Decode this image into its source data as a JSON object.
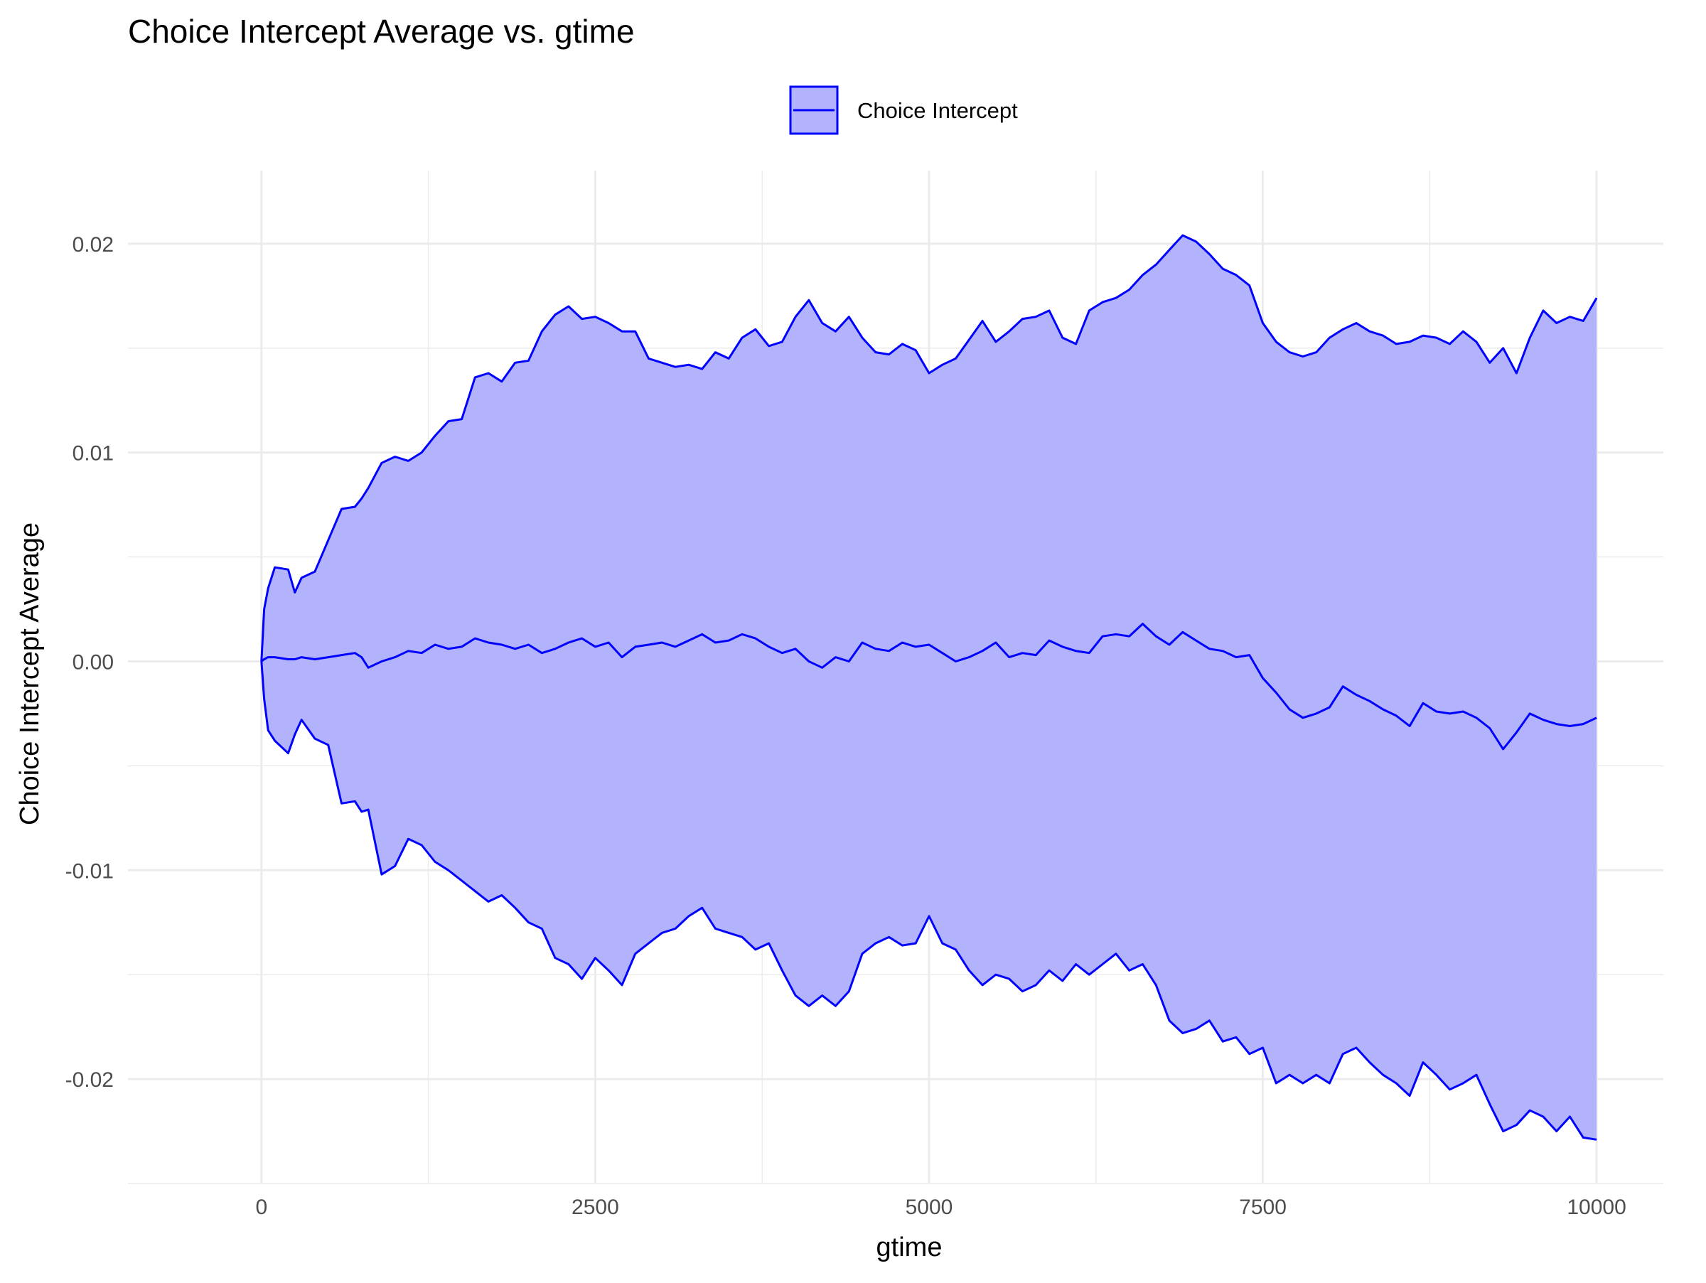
{
  "chart_data": {
    "type": "area",
    "title": "Choice Intercept Average vs. gtime",
    "xlabel": "gtime",
    "ylabel": "Choice Intercept Average",
    "xlim": [
      -1000,
      10500
    ],
    "ylim": [
      -0.025,
      0.0235
    ],
    "x_ticks": [
      0,
      2500,
      5000,
      7500,
      10000
    ],
    "x_tick_labels": [
      "0",
      "2500",
      "5000",
      "7500",
      "10000"
    ],
    "y_ticks": [
      -0.02,
      -0.01,
      0.0,
      0.01,
      0.02
    ],
    "y_tick_labels": [
      "-0.02",
      "-0.01",
      "0.00",
      "0.01",
      "0.02"
    ],
    "grid": true,
    "legend_position": "top",
    "legend": [
      {
        "label": "Choice Intercept",
        "line_color": "#0000FF",
        "fill_color": "#B2B2FD"
      }
    ],
    "colors": {
      "line": "#0000FF",
      "fill": "#B2B2FD",
      "grid": "#EBEBEB",
      "text": "#000000",
      "tick_text": "#4D4D4D"
    },
    "series": [
      {
        "name": "Choice Intercept",
        "x": [
          0,
          20,
          50,
          100,
          200,
          250,
          300,
          400,
          500,
          600,
          700,
          750,
          800,
          900,
          1000,
          1100,
          1200,
          1300,
          1400,
          1500,
          1600,
          1700,
          1800,
          1900,
          2000,
          2100,
          2200,
          2300,
          2400,
          2500,
          2600,
          2700,
          2800,
          2900,
          3000,
          3100,
          3200,
          3300,
          3400,
          3500,
          3600,
          3700,
          3800,
          3900,
          4000,
          4100,
          4200,
          4300,
          4400,
          4500,
          4600,
          4700,
          4800,
          4900,
          5000,
          5100,
          5200,
          5300,
          5400,
          5500,
          5600,
          5700,
          5800,
          5900,
          6000,
          6100,
          6200,
          6300,
          6400,
          6500,
          6600,
          6700,
          6800,
          6900,
          7000,
          7100,
          7200,
          7300,
          7400,
          7500,
          7600,
          7700,
          7800,
          7900,
          8000,
          8100,
          8200,
          8300,
          8400,
          8500,
          8600,
          8700,
          8800,
          8900,
          9000,
          9100,
          9200,
          9300,
          9400,
          9500,
          9600,
          9700,
          9800,
          9900,
          10000
        ],
        "mean": [
          0.0,
          0.0001,
          0.0002,
          0.0002,
          0.0001,
          0.0001,
          0.0002,
          0.0001,
          0.0002,
          0.0003,
          0.0004,
          0.0002,
          -0.0003,
          0.0,
          0.0002,
          0.0005,
          0.0004,
          0.0008,
          0.0006,
          0.0007,
          0.0011,
          0.0009,
          0.0008,
          0.0006,
          0.0008,
          0.0004,
          0.0006,
          0.0009,
          0.0011,
          0.0007,
          0.0009,
          0.0002,
          0.0007,
          0.0008,
          0.0009,
          0.0007,
          0.001,
          0.0013,
          0.0009,
          0.001,
          0.0013,
          0.0011,
          0.0007,
          0.0004,
          0.0006,
          0.0,
          -0.0003,
          0.0002,
          0.0,
          0.0009,
          0.0006,
          0.0005,
          0.0009,
          0.0007,
          0.0008,
          0.0004,
          0.0,
          0.0002,
          0.0005,
          0.0009,
          0.0002,
          0.0004,
          0.0003,
          0.001,
          0.0007,
          0.0005,
          0.0004,
          0.0012,
          0.0013,
          0.0012,
          0.0018,
          0.0012,
          0.0008,
          0.0014,
          0.001,
          0.0006,
          0.0005,
          0.0002,
          0.0003,
          -0.0008,
          -0.0015,
          -0.0023,
          -0.0027,
          -0.0025,
          -0.0022,
          -0.0012,
          -0.0016,
          -0.0019,
          -0.0023,
          -0.0026,
          -0.0031,
          -0.002,
          -0.0024,
          -0.0025,
          -0.0024,
          -0.0027,
          -0.0032,
          -0.0042,
          -0.0034,
          -0.0025,
          -0.0028,
          -0.003,
          -0.0031,
          -0.003,
          -0.0027
        ],
        "upper": [
          0.0,
          0.0025,
          0.0035,
          0.0045,
          0.0044,
          0.0033,
          0.004,
          0.0043,
          0.0058,
          0.0073,
          0.0074,
          0.0078,
          0.0083,
          0.0095,
          0.0098,
          0.0096,
          0.01,
          0.0108,
          0.0115,
          0.0116,
          0.0136,
          0.0138,
          0.0134,
          0.0143,
          0.0144,
          0.0158,
          0.0166,
          0.017,
          0.0164,
          0.0165,
          0.0162,
          0.0158,
          0.0158,
          0.0145,
          0.0143,
          0.0141,
          0.0142,
          0.014,
          0.0148,
          0.0145,
          0.0155,
          0.0159,
          0.0151,
          0.0153,
          0.0165,
          0.0173,
          0.0162,
          0.0158,
          0.0165,
          0.0155,
          0.0148,
          0.0147,
          0.0152,
          0.0149,
          0.0138,
          0.0142,
          0.0145,
          0.0154,
          0.0163,
          0.0153,
          0.0158,
          0.0164,
          0.0165,
          0.0168,
          0.0155,
          0.0152,
          0.0168,
          0.0172,
          0.0174,
          0.0178,
          0.0185,
          0.019,
          0.0197,
          0.0204,
          0.0201,
          0.0195,
          0.0188,
          0.0185,
          0.018,
          0.0162,
          0.0153,
          0.0148,
          0.0146,
          0.0148,
          0.0155,
          0.0159,
          0.0162,
          0.0158,
          0.0156,
          0.0152,
          0.0153,
          0.0156,
          0.0155,
          0.0152,
          0.0158,
          0.0153,
          0.0143,
          0.015,
          0.0138,
          0.0155,
          0.0168,
          0.0162,
          0.0165,
          0.0163,
          0.0174
        ],
        "lower": [
          0.0,
          -0.0018,
          -0.0033,
          -0.0038,
          -0.0044,
          -0.0035,
          -0.0028,
          -0.0037,
          -0.004,
          -0.0068,
          -0.0067,
          -0.0072,
          -0.0071,
          -0.0102,
          -0.0098,
          -0.0085,
          -0.0088,
          -0.0096,
          -0.01,
          -0.0105,
          -0.011,
          -0.0115,
          -0.0112,
          -0.0118,
          -0.0125,
          -0.0128,
          -0.0142,
          -0.0145,
          -0.0152,
          -0.0142,
          -0.0148,
          -0.0155,
          -0.014,
          -0.0135,
          -0.013,
          -0.0128,
          -0.0122,
          -0.0118,
          -0.0128,
          -0.013,
          -0.0132,
          -0.0138,
          -0.0135,
          -0.0148,
          -0.016,
          -0.0165,
          -0.016,
          -0.0165,
          -0.0158,
          -0.014,
          -0.0135,
          -0.0132,
          -0.0136,
          -0.0135,
          -0.0122,
          -0.0135,
          -0.0138,
          -0.0148,
          -0.0155,
          -0.015,
          -0.0152,
          -0.0158,
          -0.0155,
          -0.0148,
          -0.0153,
          -0.0145,
          -0.015,
          -0.0145,
          -0.014,
          -0.0148,
          -0.0145,
          -0.0155,
          -0.0172,
          -0.0178,
          -0.0176,
          -0.0172,
          -0.0182,
          -0.018,
          -0.0188,
          -0.0185,
          -0.0202,
          -0.0198,
          -0.0202,
          -0.0198,
          -0.0202,
          -0.0188,
          -0.0185,
          -0.0192,
          -0.0198,
          -0.0202,
          -0.0208,
          -0.0192,
          -0.0198,
          -0.0205,
          -0.0202,
          -0.0198,
          -0.0212,
          -0.0225,
          -0.0222,
          -0.0215,
          -0.0218,
          -0.0225,
          -0.0218,
          -0.0228,
          -0.0229
        ]
      }
    ]
  }
}
